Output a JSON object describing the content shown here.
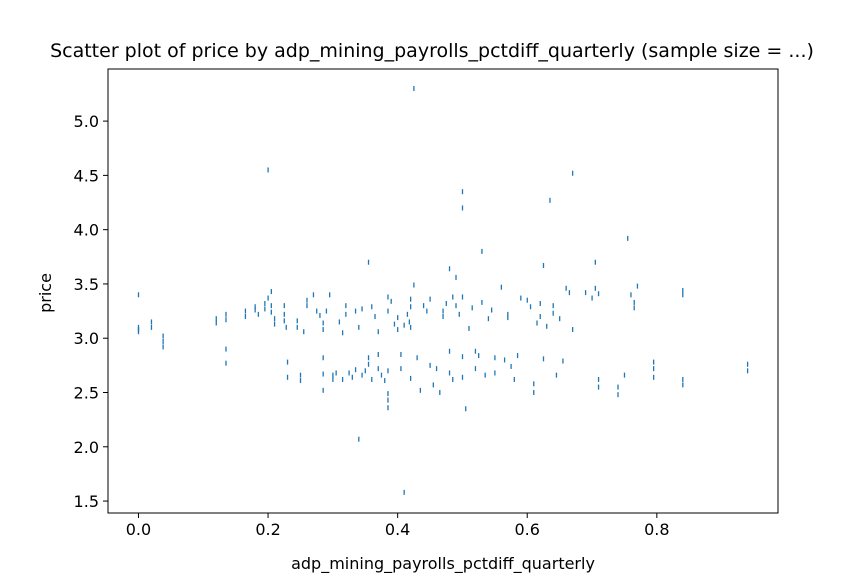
{
  "chart_data": {
    "type": "scatter",
    "title": "Scatter plot of price by adp_mining_payrolls_pctdiff_quarterly (sample size = ...)",
    "xlabel": "adp_mining_payrolls_pctdiff_quarterly",
    "ylabel": "price",
    "xlim": [
      -0.047,
      0.987
    ],
    "ylim": [
      1.39,
      5.48
    ],
    "xticks": [
      0.0,
      0.2,
      0.4,
      0.6,
      0.8
    ],
    "xtick_labels": [
      "0.0",
      "0.2",
      "0.4",
      "0.6",
      "0.8"
    ],
    "yticks": [
      1.5,
      2.0,
      2.5,
      3.0,
      3.5,
      4.0,
      4.5,
      5.0
    ],
    "ytick_labels": [
      "1.5",
      "2.0",
      "2.5",
      "3.0",
      "3.5",
      "4.0",
      "4.5",
      "5.0"
    ],
    "grid": false,
    "marker_color": "#1f77b4",
    "points": [
      [
        0.0,
        3.4
      ],
      [
        0.0,
        3.1
      ],
      [
        0.0,
        3.08
      ],
      [
        0.0,
        3.06
      ],
      [
        0.02,
        3.15
      ],
      [
        0.02,
        3.1
      ],
      [
        0.038,
        3.02
      ],
      [
        0.038,
        2.97
      ],
      [
        0.038,
        2.92
      ],
      [
        0.12,
        3.18
      ],
      [
        0.12,
        3.14
      ],
      [
        0.135,
        3.22
      ],
      [
        0.135,
        3.17
      ],
      [
        0.135,
        2.9
      ],
      [
        0.135,
        2.77
      ],
      [
        0.165,
        3.25
      ],
      [
        0.165,
        3.2
      ],
      [
        0.18,
        3.29
      ],
      [
        0.18,
        3.26
      ],
      [
        0.185,
        3.22
      ],
      [
        0.195,
        3.32
      ],
      [
        0.195,
        3.27
      ],
      [
        0.2,
        4.55
      ],
      [
        0.2,
        3.37
      ],
      [
        0.205,
        3.43
      ],
      [
        0.205,
        3.3
      ],
      [
        0.205,
        3.24
      ],
      [
        0.21,
        3.18
      ],
      [
        0.21,
        3.13
      ],
      [
        0.225,
        3.3
      ],
      [
        0.225,
        3.22
      ],
      [
        0.225,
        3.16
      ],
      [
        0.228,
        3.1
      ],
      [
        0.23,
        2.78
      ],
      [
        0.23,
        2.64
      ],
      [
        0.245,
        3.16
      ],
      [
        0.245,
        3.1
      ],
      [
        0.25,
        2.66
      ],
      [
        0.25,
        2.61
      ],
      [
        0.255,
        3.06
      ],
      [
        0.26,
        3.35
      ],
      [
        0.26,
        3.3
      ],
      [
        0.27,
        3.4
      ],
      [
        0.275,
        3.25
      ],
      [
        0.28,
        3.21
      ],
      [
        0.285,
        3.14
      ],
      [
        0.285,
        3.08
      ],
      [
        0.285,
        2.82
      ],
      [
        0.285,
        2.67
      ],
      [
        0.285,
        2.52
      ],
      [
        0.29,
        3.25
      ],
      [
        0.295,
        3.4
      ],
      [
        0.3,
        2.66
      ],
      [
        0.3,
        2.62
      ],
      [
        0.305,
        2.68
      ],
      [
        0.31,
        3.15
      ],
      [
        0.315,
        3.05
      ],
      [
        0.315,
        2.62
      ],
      [
        0.32,
        3.3
      ],
      [
        0.32,
        3.22
      ],
      [
        0.325,
        2.68
      ],
      [
        0.33,
        2.64
      ],
      [
        0.335,
        2.71
      ],
      [
        0.335,
        3.25
      ],
      [
        0.34,
        2.07
      ],
      [
        0.34,
        3.1
      ],
      [
        0.345,
        3.27
      ],
      [
        0.345,
        2.66
      ],
      [
        0.35,
        2.7
      ],
      [
        0.355,
        2.76
      ],
      [
        0.355,
        2.82
      ],
      [
        0.355,
        3.7
      ],
      [
        0.36,
        3.29
      ],
      [
        0.36,
        2.62
      ],
      [
        0.365,
        3.2
      ],
      [
        0.37,
        3.06
      ],
      [
        0.37,
        2.85
      ],
      [
        0.37,
        2.72
      ],
      [
        0.375,
        2.66
      ],
      [
        0.38,
        2.61
      ],
      [
        0.385,
        3.38
      ],
      [
        0.385,
        3.25
      ],
      [
        0.385,
        2.7
      ],
      [
        0.385,
        2.49
      ],
      [
        0.385,
        2.43
      ],
      [
        0.385,
        2.36
      ],
      [
        0.39,
        3.34
      ],
      [
        0.395,
        3.13
      ],
      [
        0.4,
        3.19
      ],
      [
        0.4,
        3.08
      ],
      [
        0.405,
        2.85
      ],
      [
        0.405,
        2.72
      ],
      [
        0.41,
        3.12
      ],
      [
        0.41,
        1.58
      ],
      [
        0.415,
        3.22
      ],
      [
        0.418,
        3.15
      ],
      [
        0.42,
        3.36
      ],
      [
        0.42,
        3.29
      ],
      [
        0.42,
        3.1
      ],
      [
        0.42,
        2.63
      ],
      [
        0.425,
        5.3
      ],
      [
        0.425,
        3.49
      ],
      [
        0.43,
        2.82
      ],
      [
        0.435,
        2.52
      ],
      [
        0.44,
        3.3
      ],
      [
        0.445,
        3.25
      ],
      [
        0.45,
        2.75
      ],
      [
        0.45,
        3.36
      ],
      [
        0.455,
        2.57
      ],
      [
        0.46,
        2.72
      ],
      [
        0.465,
        2.5
      ],
      [
        0.47,
        3.2
      ],
      [
        0.47,
        3.25
      ],
      [
        0.475,
        3.32
      ],
      [
        0.48,
        3.64
      ],
      [
        0.48,
        2.88
      ],
      [
        0.48,
        2.68
      ],
      [
        0.485,
        3.38
      ],
      [
        0.485,
        2.62
      ],
      [
        0.49,
        3.3
      ],
      [
        0.49,
        3.56
      ],
      [
        0.495,
        3.22
      ],
      [
        0.5,
        4.35
      ],
      [
        0.5,
        4.2
      ],
      [
        0.5,
        3.38
      ],
      [
        0.5,
        2.83
      ],
      [
        0.5,
        2.64
      ],
      [
        0.505,
        2.35
      ],
      [
        0.51,
        3.09
      ],
      [
        0.515,
        3.28
      ],
      [
        0.52,
        2.88
      ],
      [
        0.52,
        2.72
      ],
      [
        0.525,
        2.84
      ],
      [
        0.53,
        3.8
      ],
      [
        0.53,
        3.33
      ],
      [
        0.535,
        2.66
      ],
      [
        0.54,
        3.18
      ],
      [
        0.545,
        3.26
      ],
      [
        0.55,
        2.82
      ],
      [
        0.55,
        2.68
      ],
      [
        0.56,
        3.47
      ],
      [
        0.565,
        2.8
      ],
      [
        0.57,
        3.22
      ],
      [
        0.57,
        3.19
      ],
      [
        0.575,
        2.74
      ],
      [
        0.58,
        2.62
      ],
      [
        0.585,
        2.84
      ],
      [
        0.59,
        3.37
      ],
      [
        0.6,
        3.35
      ],
      [
        0.605,
        3.29
      ],
      [
        0.61,
        2.58
      ],
      [
        0.61,
        2.5
      ],
      [
        0.615,
        3.14
      ],
      [
        0.62,
        3.2
      ],
      [
        0.62,
        3.32
      ],
      [
        0.625,
        3.67
      ],
      [
        0.625,
        2.81
      ],
      [
        0.63,
        3.11
      ],
      [
        0.635,
        4.27
      ],
      [
        0.64,
        3.3
      ],
      [
        0.64,
        3.23
      ],
      [
        0.645,
        2.66
      ],
      [
        0.65,
        3.18
      ],
      [
        0.655,
        2.79
      ],
      [
        0.66,
        3.46
      ],
      [
        0.665,
        3.42
      ],
      [
        0.67,
        4.52
      ],
      [
        0.67,
        3.08
      ],
      [
        0.69,
        3.42
      ],
      [
        0.7,
        3.37
      ],
      [
        0.705,
        3.7
      ],
      [
        0.705,
        3.46
      ],
      [
        0.71,
        3.41
      ],
      [
        0.71,
        2.62
      ],
      [
        0.71,
        2.55
      ],
      [
        0.74,
        2.55
      ],
      [
        0.74,
        2.48
      ],
      [
        0.75,
        2.66
      ],
      [
        0.755,
        3.92
      ],
      [
        0.76,
        3.4
      ],
      [
        0.765,
        3.33
      ],
      [
        0.765,
        3.28
      ],
      [
        0.77,
        3.48
      ],
      [
        0.795,
        2.78
      ],
      [
        0.795,
        2.72
      ],
      [
        0.795,
        2.64
      ],
      [
        0.84,
        3.44
      ],
      [
        0.84,
        3.4
      ],
      [
        0.84,
        2.62
      ],
      [
        0.84,
        2.57
      ],
      [
        0.94,
        2.76
      ],
      [
        0.94,
        2.7
      ]
    ]
  }
}
